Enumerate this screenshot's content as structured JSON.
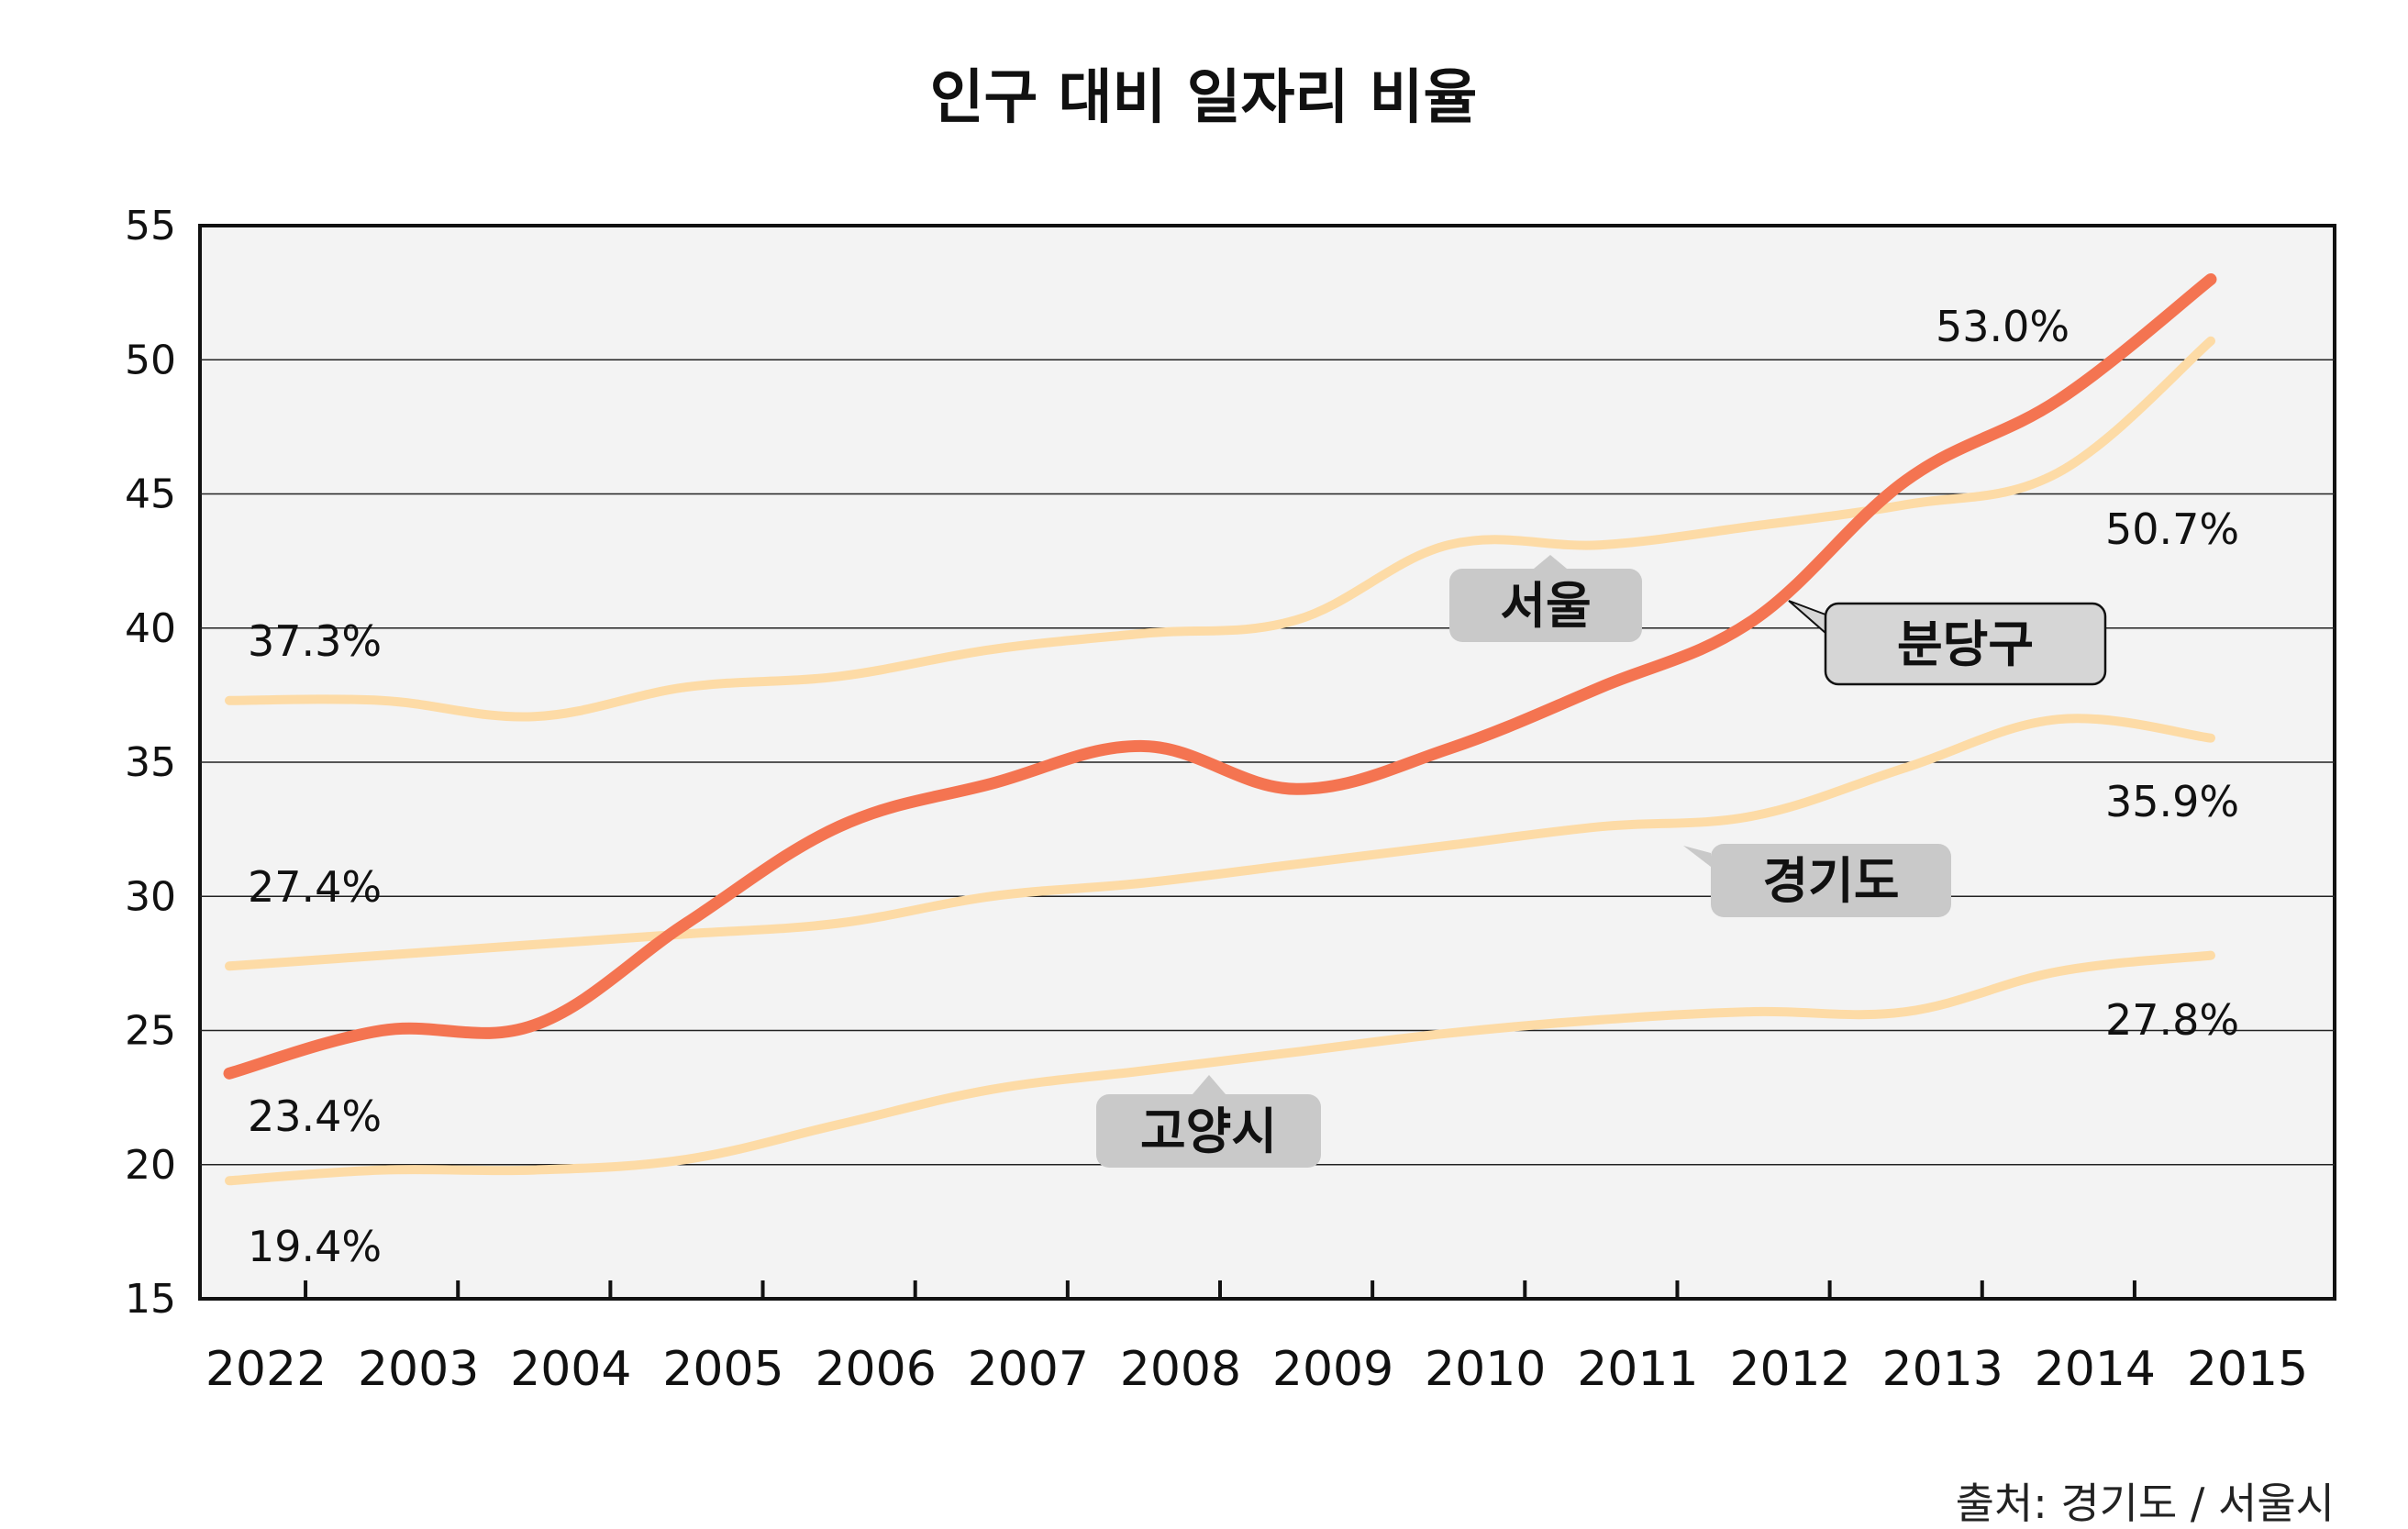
{
  "chart_data": {
    "type": "line",
    "title": "인구 대비 일자리 비율",
    "source": "출처: 경기도 / 서울시",
    "categories": [
      "2022",
      "2003",
      "2004",
      "2005",
      "2006",
      "2007",
      "2008",
      "2009",
      "2010",
      "2011",
      "2012",
      "2013",
      "2014",
      "2015"
    ],
    "ylim": [
      15,
      55
    ],
    "yticks": [
      15,
      20,
      25,
      30,
      35,
      40,
      45,
      50,
      55
    ],
    "grid": true,
    "series": [
      {
        "name": "서울",
        "color": "#FDDBA6",
        "values": [
          37.3,
          37.3,
          36.7,
          37.8,
          38.2,
          39.2,
          39.8,
          40.3,
          43.1,
          43.1,
          43.8,
          44.6,
          45.8,
          50.7
        ],
        "start_label": "37.3%",
        "end_label": "50.7%"
      },
      {
        "name": "분당구",
        "color": "#F47451",
        "values": [
          23.4,
          25.0,
          25.2,
          29.0,
          32.6,
          34.2,
          35.6,
          34.0,
          35.5,
          37.8,
          40.3,
          45.5,
          48.5,
          53.0
        ],
        "start_label": "23.4%",
        "end_label": "53.0%"
      },
      {
        "name": "경기도",
        "color": "#FDDBA6",
        "values": [
          27.4,
          27.8,
          28.2,
          28.6,
          29.0,
          30.0,
          30.5,
          31.2,
          31.9,
          32.6,
          33.0,
          34.8,
          36.6,
          35.9
        ],
        "start_label": "27.4%",
        "end_label": "35.9%"
      },
      {
        "name": "고양시",
        "color": "#FDDBA6",
        "values": [
          19.4,
          19.8,
          19.8,
          20.2,
          21.5,
          22.8,
          23.5,
          24.2,
          24.9,
          25.4,
          25.7,
          25.7,
          27.2,
          27.8
        ],
        "start_label": "19.4%",
        "end_label": "27.8%"
      }
    ]
  }
}
